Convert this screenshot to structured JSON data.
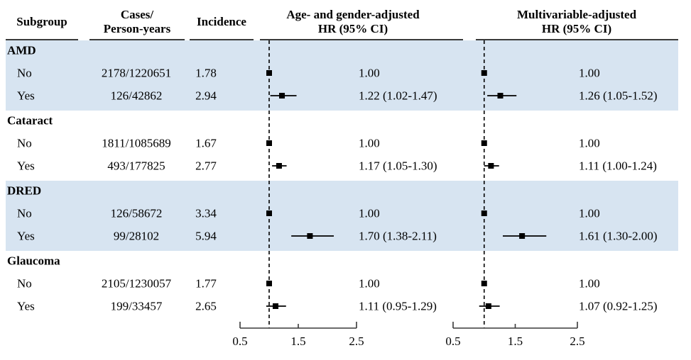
{
  "figure": {
    "header": {
      "subgroup": "Subgroup",
      "cases_line1": "Cases/",
      "cases_line2": "Person-years",
      "incidence": "Incidence",
      "panel1_line1": "Age- and gender-adjusted",
      "panel1_line2": "HR (95% CI)",
      "panel2_line1": "Multivariable-adjusted",
      "panel2_line2": "HR  (95% CI)"
    },
    "colors": {
      "band": "#d7e4f1",
      "text": "#000000",
      "rule": "#3a3a3a",
      "marker": "#000000",
      "axis": "#3a3a3a"
    },
    "sections": [
      {
        "label": "AMD",
        "shaded": true,
        "rows": [
          {
            "subgroup": "No",
            "cases": "2178/1220651",
            "incidence": "1.78",
            "hr1_text": "1.00",
            "hr2_text": "1.00"
          },
          {
            "subgroup": "Yes",
            "cases": "126/42862",
            "incidence": "2.94",
            "hr1_text": "1.22 (1.02-1.47)",
            "hr2_text": "1.26 (1.05-1.52)"
          }
        ]
      },
      {
        "label": "Cataract",
        "shaded": false,
        "rows": [
          {
            "subgroup": "No",
            "cases": "1811/1085689",
            "incidence": "1.67",
            "hr1_text": "1.00",
            "hr2_text": "1.00"
          },
          {
            "subgroup": "Yes",
            "cases": "493/177825",
            "incidence": "2.77",
            "hr1_text": "1.17 (1.05-1.30)",
            "hr2_text": "1.11 (1.00-1.24)"
          }
        ]
      },
      {
        "label": "DRED",
        "shaded": true,
        "rows": [
          {
            "subgroup": "No",
            "cases": "126/58672",
            "incidence": "3.34",
            "hr1_text": "1.00",
            "hr2_text": "1.00"
          },
          {
            "subgroup": "Yes",
            "cases": "99/28102",
            "incidence": "5.94",
            "hr1_text": "1.70 (1.38-2.11)",
            "hr2_text": "1.61 (1.30-2.00)"
          }
        ]
      },
      {
        "label": "Glaucoma",
        "shaded": false,
        "rows": [
          {
            "subgroup": "No",
            "cases": "2105/1230057",
            "incidence": "1.77",
            "hr1_text": "1.00",
            "hr2_text": "1.00"
          },
          {
            "subgroup": "Yes",
            "cases": "199/33457",
            "incidence": "2.65",
            "hr1_text": "1.11 (0.95-1.29)",
            "hr2_text": "1.07 (0.92-1.25)"
          }
        ]
      }
    ]
  },
  "chart_data": [
    {
      "type": "forest",
      "title": "Age- and gender-adjusted HR (95% CI)",
      "xlim": [
        0.5,
        2.5
      ],
      "xticks": [
        "0.5",
        "1.5",
        "2.5"
      ],
      "xtick_values": [
        0.5,
        1.5,
        2.5
      ],
      "reference_line": 1.0,
      "points": [
        {
          "group": "AMD",
          "subgroup": "No",
          "hr": 1.0,
          "lo": null,
          "hi": null
        },
        {
          "group": "AMD",
          "subgroup": "Yes",
          "hr": 1.22,
          "lo": 1.02,
          "hi": 1.47
        },
        {
          "group": "Cataract",
          "subgroup": "No",
          "hr": 1.0,
          "lo": null,
          "hi": null
        },
        {
          "group": "Cataract",
          "subgroup": "Yes",
          "hr": 1.17,
          "lo": 1.05,
          "hi": 1.3
        },
        {
          "group": "DRED",
          "subgroup": "No",
          "hr": 1.0,
          "lo": null,
          "hi": null
        },
        {
          "group": "DRED",
          "subgroup": "Yes",
          "hr": 1.7,
          "lo": 1.38,
          "hi": 2.11
        },
        {
          "group": "Glaucoma",
          "subgroup": "No",
          "hr": 1.0,
          "lo": null,
          "hi": null
        },
        {
          "group": "Glaucoma",
          "subgroup": "Yes",
          "hr": 1.11,
          "lo": 0.95,
          "hi": 1.29
        }
      ]
    },
    {
      "type": "forest",
      "title": "Multivariable-adjusted HR (95% CI)",
      "xlim": [
        0.5,
        2.5
      ],
      "xticks": [
        "0.5",
        "1.5",
        "2.5"
      ],
      "xtick_values": [
        0.5,
        1.5,
        2.5
      ],
      "reference_line": 1.0,
      "points": [
        {
          "group": "AMD",
          "subgroup": "No",
          "hr": 1.0,
          "lo": null,
          "hi": null
        },
        {
          "group": "AMD",
          "subgroup": "Yes",
          "hr": 1.26,
          "lo": 1.05,
          "hi": 1.52
        },
        {
          "group": "Cataract",
          "subgroup": "No",
          "hr": 1.0,
          "lo": null,
          "hi": null
        },
        {
          "group": "Cataract",
          "subgroup": "Yes",
          "hr": 1.11,
          "lo": 1.0,
          "hi": 1.24
        },
        {
          "group": "DRED",
          "subgroup": "No",
          "hr": 1.0,
          "lo": null,
          "hi": null
        },
        {
          "group": "DRED",
          "subgroup": "Yes",
          "hr": 1.61,
          "lo": 1.3,
          "hi": 2.0
        },
        {
          "group": "Glaucoma",
          "subgroup": "No",
          "hr": 1.0,
          "lo": null,
          "hi": null
        },
        {
          "group": "Glaucoma",
          "subgroup": "Yes",
          "hr": 1.07,
          "lo": 0.92,
          "hi": 1.25
        }
      ]
    }
  ]
}
